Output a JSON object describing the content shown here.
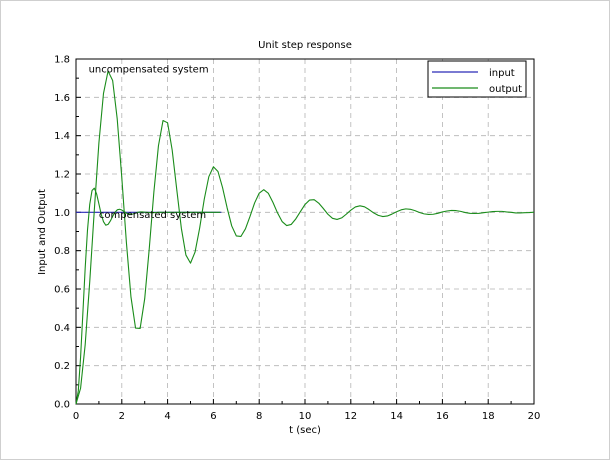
{
  "chart_data": {
    "type": "line",
    "title": "Unit step response",
    "xlabel": "t (sec)",
    "ylabel": "Input and Output",
    "xlim": [
      0,
      20
    ],
    "ylim": [
      0,
      1.8
    ],
    "x_ticks": [
      0,
      2,
      4,
      6,
      8,
      10,
      12,
      14,
      16,
      18,
      20
    ],
    "y_ticks": [
      0.0,
      0.2,
      0.4,
      0.6,
      0.8,
      1.0,
      1.2,
      1.4,
      1.6,
      1.8
    ],
    "x_tick_labels": [
      "0",
      "2",
      "4",
      "6",
      "8",
      "10",
      "12",
      "14",
      "16",
      "18",
      "20"
    ],
    "y_tick_labels": [
      "0.0",
      "0.2",
      "0.4",
      "0.6",
      "0.8",
      "1.0",
      "1.2",
      "1.4",
      "1.6",
      "1.8"
    ],
    "grid": true,
    "legend_position": "top-right",
    "legend": [
      {
        "name": "input",
        "color": "#2b2bb8"
      },
      {
        "name": "output",
        "color": "#1a8c1a"
      }
    ],
    "annotations": [
      {
        "text": "uncompensated system",
        "x": 0.55,
        "y": 1.73
      },
      {
        "text": "compensated system",
        "x": 1.0,
        "y": 0.97
      }
    ],
    "series": [
      {
        "name": "input",
        "color": "#2b2bb8",
        "x": [
          0,
          6.35
        ],
        "y": [
          1.0,
          1.0
        ]
      },
      {
        "name": "output",
        "color": "#1a8c1a",
        "x": [
          0.0,
          0.2,
          0.4,
          0.6,
          0.8,
          1.0,
          1.2,
          1.4,
          1.6,
          1.8,
          2.0,
          2.2,
          2.4,
          2.6,
          2.8,
          3.0,
          3.2,
          3.4,
          3.6,
          3.8,
          4.0,
          4.2,
          4.4,
          4.6,
          4.8,
          5.0,
          5.2,
          5.4,
          5.6,
          5.8,
          6.0,
          6.2,
          6.4,
          6.6,
          6.8,
          7.0,
          7.2,
          7.4,
          7.6,
          7.8,
          8.0,
          8.2,
          8.4,
          8.6,
          8.8,
          9.0,
          9.2,
          9.4,
          9.6,
          9.8,
          10.0,
          10.2,
          10.4,
          10.6,
          10.8,
          11.0,
          11.2,
          11.4,
          11.6,
          11.8,
          12.0,
          12.2,
          12.4,
          12.6,
          12.8,
          13.0,
          13.2,
          13.4,
          13.6,
          13.8,
          14.0,
          14.2,
          14.4,
          14.6,
          14.8,
          15.0,
          15.2,
          15.4,
          15.6,
          15.8,
          16.0,
          16.2,
          16.4,
          16.6,
          16.8,
          17.0,
          17.2,
          17.4,
          17.6,
          17.8,
          18.0,
          18.2,
          18.4,
          18.6,
          18.8,
          19.0,
          19.2,
          19.4,
          19.6,
          19.8,
          20.0
        ],
        "y": [
          0.0,
          0.082,
          0.308,
          0.638,
          1.012,
          1.362,
          1.62,
          1.737,
          1.688,
          1.487,
          1.181,
          0.844,
          0.559,
          0.396,
          0.394,
          0.549,
          0.812,
          1.105,
          1.347,
          1.479,
          1.467,
          1.325,
          1.119,
          0.917,
          0.777,
          0.735,
          0.793,
          0.918,
          1.068,
          1.186,
          1.238,
          1.213,
          1.129,
          1.023,
          0.929,
          0.877,
          0.874,
          0.914,
          0.979,
          1.049,
          1.1,
          1.118,
          1.099,
          1.052,
          0.997,
          0.952,
          0.931,
          0.937,
          0.966,
          1.004,
          1.041,
          1.064,
          1.066,
          1.048,
          1.02,
          0.99,
          0.969,
          0.963,
          0.971,
          0.99,
          1.011,
          1.028,
          1.034,
          1.029,
          1.014,
          0.997,
          0.984,
          0.978,
          0.981,
          0.991,
          1.003,
          1.013,
          1.018,
          1.016,
          1.009,
          0.999,
          0.992,
          0.989,
          0.99,
          0.995,
          1.002,
          1.007,
          1.01,
          1.009,
          1.005,
          0.999,
          0.995,
          0.994,
          0.995,
          0.998,
          1.001,
          1.004,
          1.005,
          1.005,
          1.002,
          1.0,
          0.997,
          0.997,
          0.998,
          0.999,
          1.001
        ]
      },
      {
        "name": "compensated output",
        "color": "#1a8c1a",
        "x": [
          0.0,
          0.1,
          0.2,
          0.3,
          0.4,
          0.5,
          0.6,
          0.7,
          0.8,
          0.9,
          1.0,
          1.1,
          1.2,
          1.3,
          1.4,
          1.5,
          1.6,
          1.7,
          1.8,
          1.9,
          2.0,
          2.1,
          2.2,
          2.3,
          2.4,
          2.5,
          2.6,
          2.7,
          2.8,
          2.9,
          3.0,
          3.1,
          3.2,
          3.3,
          3.4,
          3.5,
          3.6,
          3.7,
          3.8,
          3.9,
          4.0,
          4.1,
          4.2,
          4.3,
          4.4,
          4.5,
          4.6,
          4.7,
          4.8,
          4.9,
          5.0,
          5.1,
          5.2,
          5.3,
          5.4,
          5.5,
          5.6,
          5.7,
          5.8,
          5.9,
          6.0,
          6.1,
          6.2,
          6.3
        ],
        "y": [
          0.0,
          0.068,
          0.244,
          0.474,
          0.707,
          0.904,
          1.042,
          1.114,
          1.126,
          1.096,
          1.044,
          0.99,
          0.951,
          0.933,
          0.937,
          0.955,
          0.979,
          1.0,
          1.013,
          1.016,
          1.012,
          1.004,
          0.996,
          0.991,
          0.99,
          0.992,
          0.996,
          1.0,
          1.002,
          1.002,
          1.001,
          1.0,
          0.999,
          0.999,
          0.999,
          0.999,
          1.0,
          1.0,
          1.0,
          1.0,
          1.0,
          1.0,
          1.0,
          1.0,
          1.0,
          1.0,
          1.0,
          1.0,
          1.0,
          1.0,
          1.0,
          1.0,
          1.0,
          1.0,
          1.0,
          1.0,
          1.0,
          1.0,
          1.0,
          1.0,
          1.0,
          1.0,
          1.0,
          1.0
        ]
      }
    ]
  }
}
